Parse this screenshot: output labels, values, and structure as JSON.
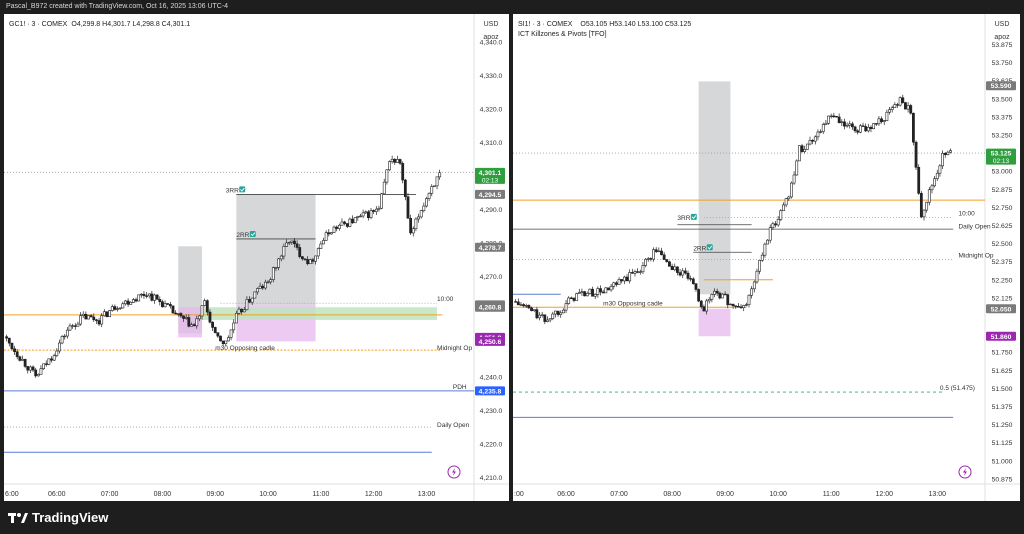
{
  "header": {
    "credit": "Pascal_B972 created with TradingView.com, Oct 16, 2025 13:06 UTC-4"
  },
  "brand": {
    "name": "TradingView"
  },
  "colors": {
    "up": "#26a69a",
    "down": "#333333",
    "orange": "#f0a020",
    "blue": "#2962ff",
    "pink": "#e1bee7",
    "gray_box": "#bdbdbd",
    "green_box": "#c8e6c9",
    "purple_label": "#9c27b0",
    "green_label": "#2e7d32",
    "gray_label": "#757575",
    "blue_label": "#1e5cff"
  },
  "chart_data": [
    {
      "type": "candlestick",
      "symbol": "GC1! · 3 · COMEX",
      "ohlc_text": "O4,299.8  H4,301.7  L4,298.8  C4,301.1",
      "currency": "USD",
      "scale_mode": "apoz",
      "x_ticks": [
        "6:00",
        "06:00",
        "07:00",
        "08:00",
        "09:00",
        "10:00",
        "11:00",
        "12:00",
        "13:00"
      ],
      "y_ticks": [
        "4,340.0",
        "4,330.0",
        "4,320.0",
        "4,310.0",
        "4,290.0",
        "4,280.0",
        "4,270.0",
        "4,240.0",
        "4,230.0",
        "4,220.0",
        "4,210.0"
      ],
      "ylim": [
        4208,
        4346
      ],
      "xlim": [
        5.0,
        13.9
      ],
      "series_path": [
        [
          5.0,
          4252
        ],
        [
          5.3,
          4246
        ],
        [
          5.6,
          4240
        ],
        [
          5.9,
          4246
        ],
        [
          6.2,
          4254
        ],
        [
          6.5,
          4258
        ],
        [
          6.8,
          4257
        ],
        [
          7.1,
          4261
        ],
        [
          7.4,
          4263
        ],
        [
          7.7,
          4265
        ],
        [
          8.0,
          4262
        ],
        [
          8.3,
          4258
        ],
        [
          8.6,
          4255
        ],
        [
          8.8,
          4262
        ],
        [
          9.0,
          4252
        ],
        [
          9.2,
          4250
        ],
        [
          9.4,
          4258
        ],
        [
          9.6,
          4262
        ],
        [
          9.8,
          4266
        ],
        [
          10.0,
          4268
        ],
        [
          10.2,
          4275
        ],
        [
          10.4,
          4281
        ],
        [
          10.6,
          4277
        ],
        [
          10.8,
          4274
        ],
        [
          11.0,
          4280
        ],
        [
          11.2,
          4284
        ],
        [
          11.5,
          4286
        ],
        [
          11.8,
          4288
        ],
        [
          12.1,
          4290
        ],
        [
          12.3,
          4305
        ],
        [
          12.5,
          4304
        ],
        [
          12.7,
          4282
        ],
        [
          12.9,
          4290
        ],
        [
          13.1,
          4297
        ],
        [
          13.3,
          4301
        ]
      ],
      "price_labels": [
        {
          "text": "4,301.1",
          "sub": "02:13",
          "value": 4301.1,
          "kind": "green"
        },
        {
          "text": "4,294.5",
          "value": 4294.5,
          "kind": "gray"
        },
        {
          "text": "4,278.7",
          "value": 4278.7,
          "kind": "gray"
        },
        {
          "text": "4,261.5",
          "value": 4261.5,
          "kind": "gray"
        },
        {
          "text": "4,260.8",
          "value": 4260.8,
          "kind": "gray"
        },
        {
          "text": "4,251.8",
          "value": 4251.8,
          "kind": "purple"
        },
        {
          "text": "4,250.6",
          "value": 4250.6,
          "kind": "purple"
        },
        {
          "text": "4,235.8",
          "value": 4235.8,
          "kind": "blue"
        }
      ],
      "annotations": [
        {
          "text": "3RR",
          "x": 9.2,
          "y": 4294.5,
          "check": true
        },
        {
          "text": "2RR",
          "x": 9.4,
          "y": 4281.2,
          "check": true
        },
        {
          "text": "m30 Opposing cadle",
          "x": 9.0,
          "y": 4247.5,
          "check": false
        },
        {
          "text": "10:00",
          "x": 13.2,
          "y": 4262.0,
          "check": false
        },
        {
          "text": "Midnight Op",
          "x": 13.2,
          "y": 4247.5,
          "check": false
        },
        {
          "text": "PDH",
          "x": 13.5,
          "y": 4235.8,
          "check": false
        },
        {
          "text": "Daily Open",
          "x": 13.2,
          "y": 4224.5,
          "check": false
        }
      ],
      "levels": [
        {
          "value": 4301.1,
          "style": "dotted-gray",
          "from": 5.0,
          "to": 13.9
        },
        {
          "value": 4294.5,
          "style": "solid-dark",
          "from": 9.4,
          "to": 12.8
        },
        {
          "value": 4281.2,
          "style": "solid-dark",
          "from": 9.4,
          "to": 10.9
        },
        {
          "value": 4262.0,
          "style": "dotted-gray",
          "from": 9.1,
          "to": 13.2
        },
        {
          "value": 4258.5,
          "style": "solid-orange",
          "from": 5.0,
          "to": 13.3
        },
        {
          "value": 4248.0,
          "style": "dotted-orange",
          "from": 5.0,
          "to": 13.3
        },
        {
          "value": 4235.8,
          "style": "solid-blue",
          "from": 5.0,
          "to": 13.9
        },
        {
          "value": 4225.0,
          "style": "dotted-gray",
          "from": 5.0,
          "to": 13.1
        },
        {
          "value": 4217.5,
          "style": "solid-blue",
          "from": 5.0,
          "to": 13.1
        }
      ],
      "boxes": [
        {
          "x0": 8.3,
          "x1": 8.75,
          "y0": 4253,
          "y1": 4279,
          "kind": "gray"
        },
        {
          "x0": 8.3,
          "x1": 8.75,
          "y0": 4251.8,
          "y1": 4260.8,
          "kind": "pink"
        },
        {
          "x0": 9.4,
          "x1": 10.9,
          "y0": 4261.5,
          "y1": 4294.5,
          "kind": "gray"
        },
        {
          "x0": 9.4,
          "x1": 10.9,
          "y0": 4250.6,
          "y1": 4261.5,
          "kind": "pink"
        },
        {
          "x0": 8.75,
          "x1": 13.2,
          "y0": 4257.0,
          "y1": 4260.8,
          "kind": "green"
        }
      ]
    },
    {
      "type": "candlestick",
      "symbol": "SI1! · 3 · COMEX",
      "ohlc_text": "O53.105  H53.140  L53.100  C53.125",
      "indicator": "ICT Killzones & Pivots [TFO]",
      "currency": "USD",
      "scale_mode": "apoz",
      "x_ticks": [
        ":00",
        "06:00",
        "07:00",
        "08:00",
        "09:00",
        "10:00",
        "11:00",
        "12:00",
        "13:00"
      ],
      "y_ticks": [
        "53.875",
        "53.750",
        "53.625",
        "53.500",
        "53.375",
        "53.250",
        "53.000",
        "52.875",
        "52.750",
        "52.625",
        "52.500",
        "52.375",
        "52.250",
        "52.125",
        "51.875",
        "51.750",
        "51.625",
        "51.500",
        "51.375",
        "51.250",
        "51.125",
        "51.000",
        "50.875"
      ],
      "ylim": [
        50.84,
        54.03
      ],
      "xlim": [
        5.0,
        13.9
      ],
      "series_path": [
        [
          5.0,
          52.1
        ],
        [
          5.3,
          52.05
        ],
        [
          5.6,
          51.97
        ],
        [
          5.9,
          52.05
        ],
        [
          6.2,
          52.15
        ],
        [
          6.5,
          52.16
        ],
        [
          6.8,
          52.18
        ],
        [
          7.1,
          52.25
        ],
        [
          7.4,
          52.33
        ],
        [
          7.7,
          52.46
        ],
        [
          8.0,
          52.33
        ],
        [
          8.3,
          52.27
        ],
        [
          8.6,
          52.05
        ],
        [
          8.8,
          52.18
        ],
        [
          9.0,
          52.12
        ],
        [
          9.2,
          52.05
        ],
        [
          9.4,
          52.08
        ],
        [
          9.6,
          52.3
        ],
        [
          9.8,
          52.55
        ],
        [
          10.0,
          52.68
        ],
        [
          10.2,
          52.85
        ],
        [
          10.4,
          53.15
        ],
        [
          10.6,
          53.2
        ],
        [
          10.8,
          53.3
        ],
        [
          11.0,
          53.38
        ],
        [
          11.2,
          53.32
        ],
        [
          11.5,
          53.28
        ],
        [
          11.8,
          53.32
        ],
        [
          12.1,
          53.4
        ],
        [
          12.3,
          53.5
        ],
        [
          12.5,
          53.4
        ],
        [
          12.7,
          52.7
        ],
        [
          12.9,
          52.9
        ],
        [
          13.1,
          53.1
        ],
        [
          13.3,
          53.13
        ]
      ],
      "price_labels": [
        {
          "text": "53.590",
          "value": 53.59,
          "kind": "gray"
        },
        {
          "text": "53.125",
          "sub": "02:13",
          "value": 53.125,
          "kind": "green"
        },
        {
          "text": "52.050",
          "value": 52.05,
          "kind": "gray"
        },
        {
          "text": "51.860",
          "value": 51.86,
          "kind": "purple"
        }
      ],
      "annotations": [
        {
          "text": "3RR",
          "x": 8.1,
          "y": 52.65,
          "check": true
        },
        {
          "text": "2RR",
          "x": 8.4,
          "y": 52.44,
          "check": true
        },
        {
          "text": "m30 Opposing cadle",
          "x": 6.7,
          "y": 52.06,
          "check": false
        },
        {
          "text": "10:00",
          "x": 13.4,
          "y": 52.68,
          "check": false
        },
        {
          "text": "Daily Open",
          "x": 13.4,
          "y": 52.59,
          "check": false
        },
        {
          "text": "Midnight Op",
          "x": 13.4,
          "y": 52.39,
          "check": false
        },
        {
          "text": "0.5 (51.475)",
          "x": 13.05,
          "y": 51.475,
          "check": false
        }
      ],
      "levels": [
        {
          "value": 53.125,
          "style": "dotted-gray",
          "from": 5.0,
          "to": 13.9
        },
        {
          "value": 52.8,
          "style": "solid-orange",
          "from": 5.0,
          "to": 13.9
        },
        {
          "value": 52.68,
          "style": "dotted-gray",
          "from": 8.6,
          "to": 13.3
        },
        {
          "value": 52.63,
          "style": "solid-dark",
          "from": 8.1,
          "to": 9.5
        },
        {
          "value": 52.6,
          "style": "solid-dark",
          "from": 5.0,
          "to": 13.3
        },
        {
          "value": 52.44,
          "style": "solid-dark",
          "from": 8.4,
          "to": 9.5
        },
        {
          "value": 52.39,
          "style": "dotted-gray",
          "from": 5.0,
          "to": 13.3
        },
        {
          "value": 52.25,
          "style": "solid-orange",
          "from": 8.6,
          "to": 9.9
        },
        {
          "value": 52.15,
          "style": "solid-blue",
          "from": 5.0,
          "to": 5.9
        },
        {
          "value": 52.06,
          "style": "solid-orange",
          "from": 5.0,
          "to": 9.4
        },
        {
          "value": 51.475,
          "style": "dashed-teal",
          "from": 5.0,
          "to": 13.1
        },
        {
          "value": 51.3,
          "style": "solid-blue",
          "from": 5.0,
          "to": 13.3
        }
      ],
      "boxes": [
        {
          "x0": 8.5,
          "x1": 9.1,
          "y0": 52.15,
          "y1": 53.62,
          "kind": "gray"
        },
        {
          "x0": 8.5,
          "x1": 9.1,
          "y0": 51.86,
          "y1": 52.05,
          "kind": "pink"
        }
      ]
    }
  ]
}
